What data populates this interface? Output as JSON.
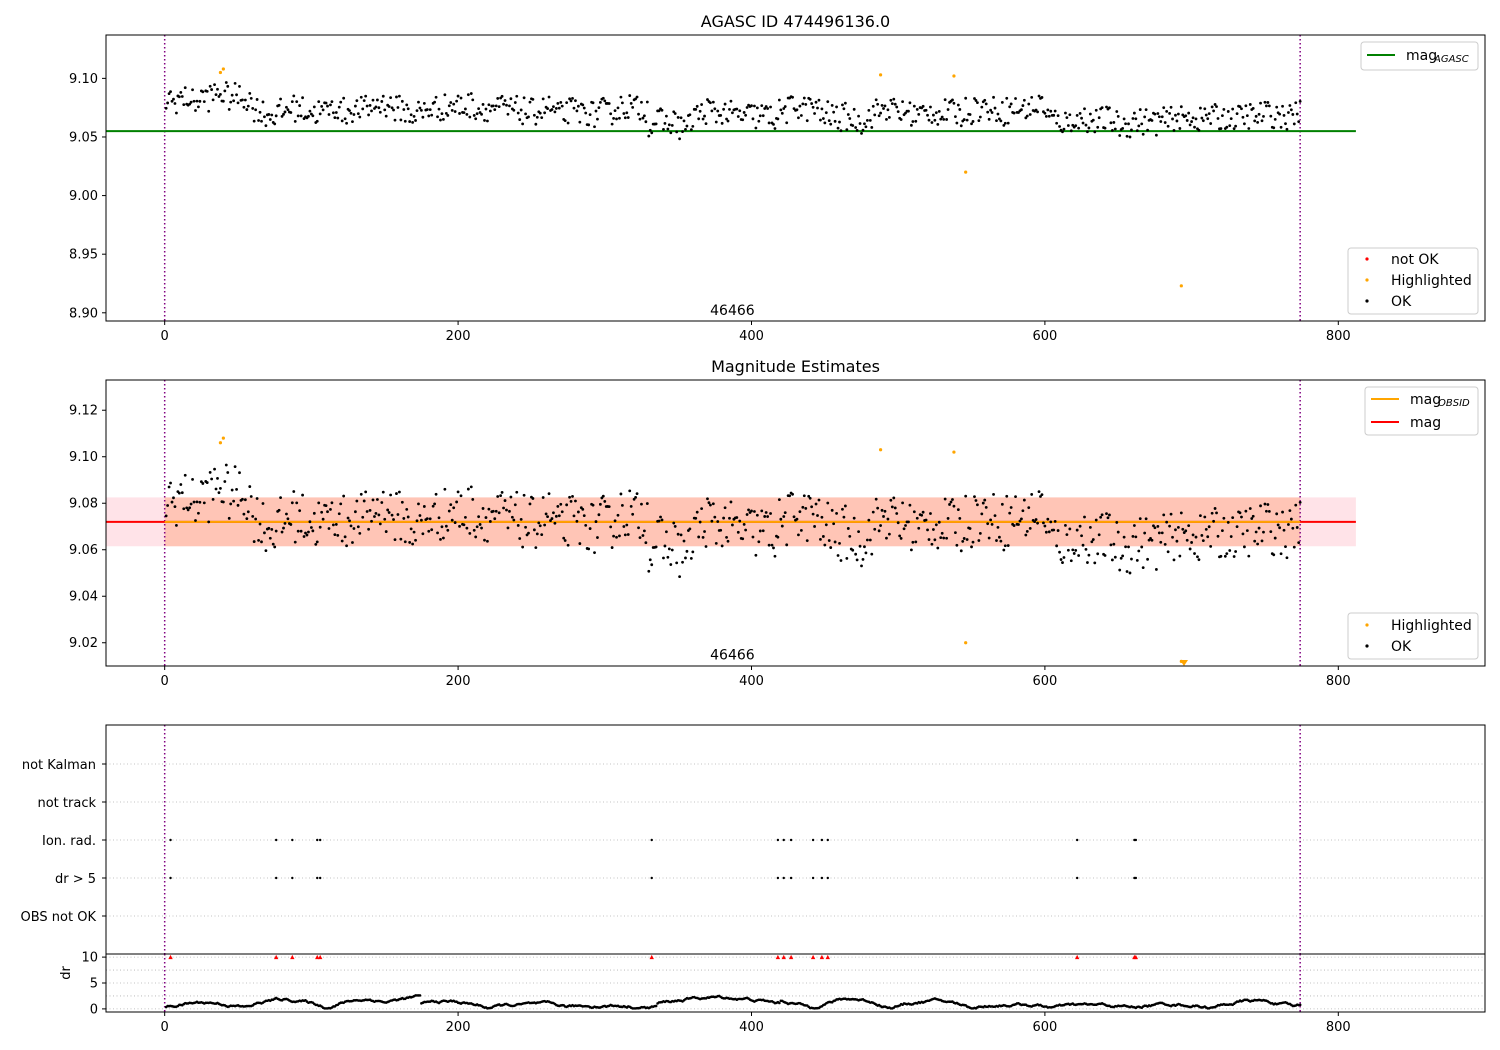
{
  "figure": {
    "colors": {
      "ok": "#000000",
      "highlighted": "#ffa500",
      "not_ok": "#ff0000",
      "agasc_line": "#008000",
      "mean_line": "#ff0000",
      "obsid_line": "#ffa500",
      "band": "#ffa07a",
      "band_outer": "#ffc0cb",
      "vline": "#800080",
      "grid": "#b0b0b0"
    }
  },
  "chart_data": [
    {
      "id": "panel-agasc",
      "type": "scatter",
      "title": "AGASC ID 474496136.0",
      "xlim": [
        -40,
        900
      ],
      "ylim": [
        8.893,
        9.137
      ],
      "xticks": [
        0,
        200,
        400,
        600,
        800
      ],
      "xtick_labels": [
        "0",
        "200",
        "400",
        "600",
        "800"
      ],
      "yticks": [
        8.9,
        8.95,
        9.0,
        9.05,
        9.1
      ],
      "ytick_labels": [
        "8.90",
        "8.95",
        "9.00",
        "9.05",
        "9.10"
      ],
      "hlines": [
        {
          "y": 9.055,
          "x0": -40,
          "x1": 812,
          "color": "#008000",
          "name": "mag_agasc"
        }
      ],
      "vlines": [
        0,
        774
      ],
      "annotation": {
        "text": "46466",
        "x": 387,
        "y": 8.898
      },
      "legend_lines": [
        {
          "label": "mag",
          "sub": "AGASC",
          "color": "#008000"
        }
      ],
      "legend_points": [
        {
          "label": "not OK",
          "color": "#ff0000"
        },
        {
          "label": "Highlighted",
          "color": "#ffa500"
        },
        {
          "label": "OK",
          "color": "#000000"
        }
      ],
      "series": [
        {
          "name": "OK",
          "generated": {
            "n": 774,
            "x0": 1,
            "x1": 774,
            "y_range": [
              9.045,
              9.1
            ],
            "profile": "agasc"
          }
        },
        {
          "name": "Highlighted",
          "points": [
            [
              38,
              9.105
            ],
            [
              40,
              9.108
            ],
            [
              488,
              9.103
            ],
            [
              538,
              9.102
            ],
            [
              546,
              9.02
            ],
            [
              693,
              8.923
            ]
          ]
        }
      ]
    },
    {
      "id": "panel-estimates",
      "type": "scatter",
      "title": "Magnitude Estimates",
      "xlim": [
        -40,
        900
      ],
      "ylim": [
        9.01,
        9.133
      ],
      "xticks": [
        0,
        200,
        400,
        600,
        800
      ],
      "xtick_labels": [
        "0",
        "200",
        "400",
        "600",
        "800"
      ],
      "yticks": [
        9.02,
        9.04,
        9.06,
        9.08,
        9.1,
        9.12
      ],
      "ytick_labels": [
        "9.02",
        "9.04",
        "9.06",
        "9.08",
        "9.10",
        "9.12"
      ],
      "band": {
        "y0": 9.0615,
        "y1": 9.0825,
        "x0": -40,
        "x1": 812
      },
      "hlines": [
        {
          "y": 9.072,
          "x0": -40,
          "x1": 812,
          "color": "#ff0000",
          "name": "mag"
        },
        {
          "y": 9.072,
          "x0": 0,
          "x1": 774,
          "color": "#ffa500",
          "name": "mag_obsid"
        }
      ],
      "vlines": [
        0,
        774
      ],
      "annotation": {
        "text": "46466",
        "x": 387,
        "y": 9.014
      },
      "legend_lines": [
        {
          "label": "mag",
          "sub": "OBSID",
          "color": "#ffa500"
        },
        {
          "label": "mag",
          "sub": "",
          "color": "#ff0000"
        }
      ],
      "legend_points": [
        {
          "label": "Highlighted",
          "color": "#ffa500"
        },
        {
          "label": "OK",
          "color": "#000000"
        }
      ],
      "series": [
        {
          "name": "OK",
          "generated": {
            "n": 774,
            "x0": 1,
            "x1": 774,
            "y_range": [
              9.045,
              9.1
            ],
            "profile": "estimates"
          }
        },
        {
          "name": "Highlighted",
          "points": [
            [
              38,
              9.106
            ],
            [
              40,
              9.108
            ],
            [
              488,
              9.103
            ],
            [
              538,
              9.102
            ],
            [
              546,
              9.02
            ],
            [
              693,
              9.012
            ]
          ]
        }
      ]
    },
    {
      "id": "panel-flags",
      "type": "scatter",
      "xlim": [
        -40,
        900
      ],
      "categories": [
        "OBS not OK",
        "dr > 5",
        "Ion. rad.",
        "not track",
        "not Kalman"
      ],
      "vlines": [
        0,
        774
      ],
      "flag_x": [
        4,
        76,
        87,
        104,
        106,
        332,
        418,
        422,
        427,
        442,
        448,
        452,
        622,
        661,
        662
      ],
      "series": [
        {
          "name": "dr > 5",
          "x": [
            4,
            76,
            87,
            104,
            106,
            332,
            418,
            422,
            427,
            442,
            448,
            452,
            622,
            661,
            662
          ]
        },
        {
          "name": "Ion. rad.",
          "x": [
            4,
            76,
            87,
            104,
            106,
            332,
            418,
            422,
            427,
            442,
            448,
            452,
            622,
            661,
            662
          ]
        }
      ]
    },
    {
      "id": "panel-dr",
      "type": "scatter",
      "xlim": [
        -40,
        900
      ],
      "ylim": [
        -0.6,
        10.6
      ],
      "ylabel": "dr",
      "xticks": [
        0,
        200,
        400,
        600,
        800
      ],
      "xtick_labels": [
        "0",
        "200",
        "400",
        "600",
        "800"
      ],
      "yticks": [
        0,
        5,
        10
      ],
      "ytick_labels": [
        "0",
        "5",
        "10"
      ],
      "vlines": [
        0,
        774
      ],
      "series": [
        {
          "name": "dr",
          "generated": {
            "n": 774,
            "x0": 1,
            "x1": 774,
            "y_range": [
              0.1,
              2.6
            ],
            "profile": "dr"
          }
        },
        {
          "name": "dr > 10",
          "x": [
            4,
            76,
            87,
            104,
            106,
            332,
            418,
            422,
            427,
            442,
            448,
            452,
            622,
            661,
            662
          ],
          "y": 10
        }
      ]
    }
  ]
}
